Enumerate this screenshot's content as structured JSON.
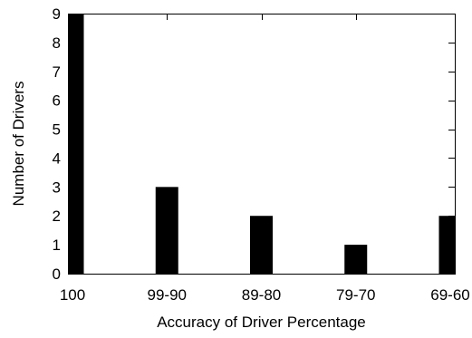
{
  "chart_data": {
    "type": "bar",
    "title": "",
    "xlabel": "Accuracy of Driver Percentage",
    "ylabel": "Number of Drivers",
    "categories": [
      "100",
      "99-90",
      "89-80",
      "79-70",
      "69-60"
    ],
    "values": [
      9,
      3,
      2,
      1,
      2
    ],
    "ylim": [
      0,
      9
    ],
    "yticks": [
      "0",
      "1",
      "2",
      "3",
      "4",
      "5",
      "6",
      "7",
      "8",
      "9"
    ],
    "grid": false,
    "legend": "none",
    "bar_color": "#000000"
  }
}
